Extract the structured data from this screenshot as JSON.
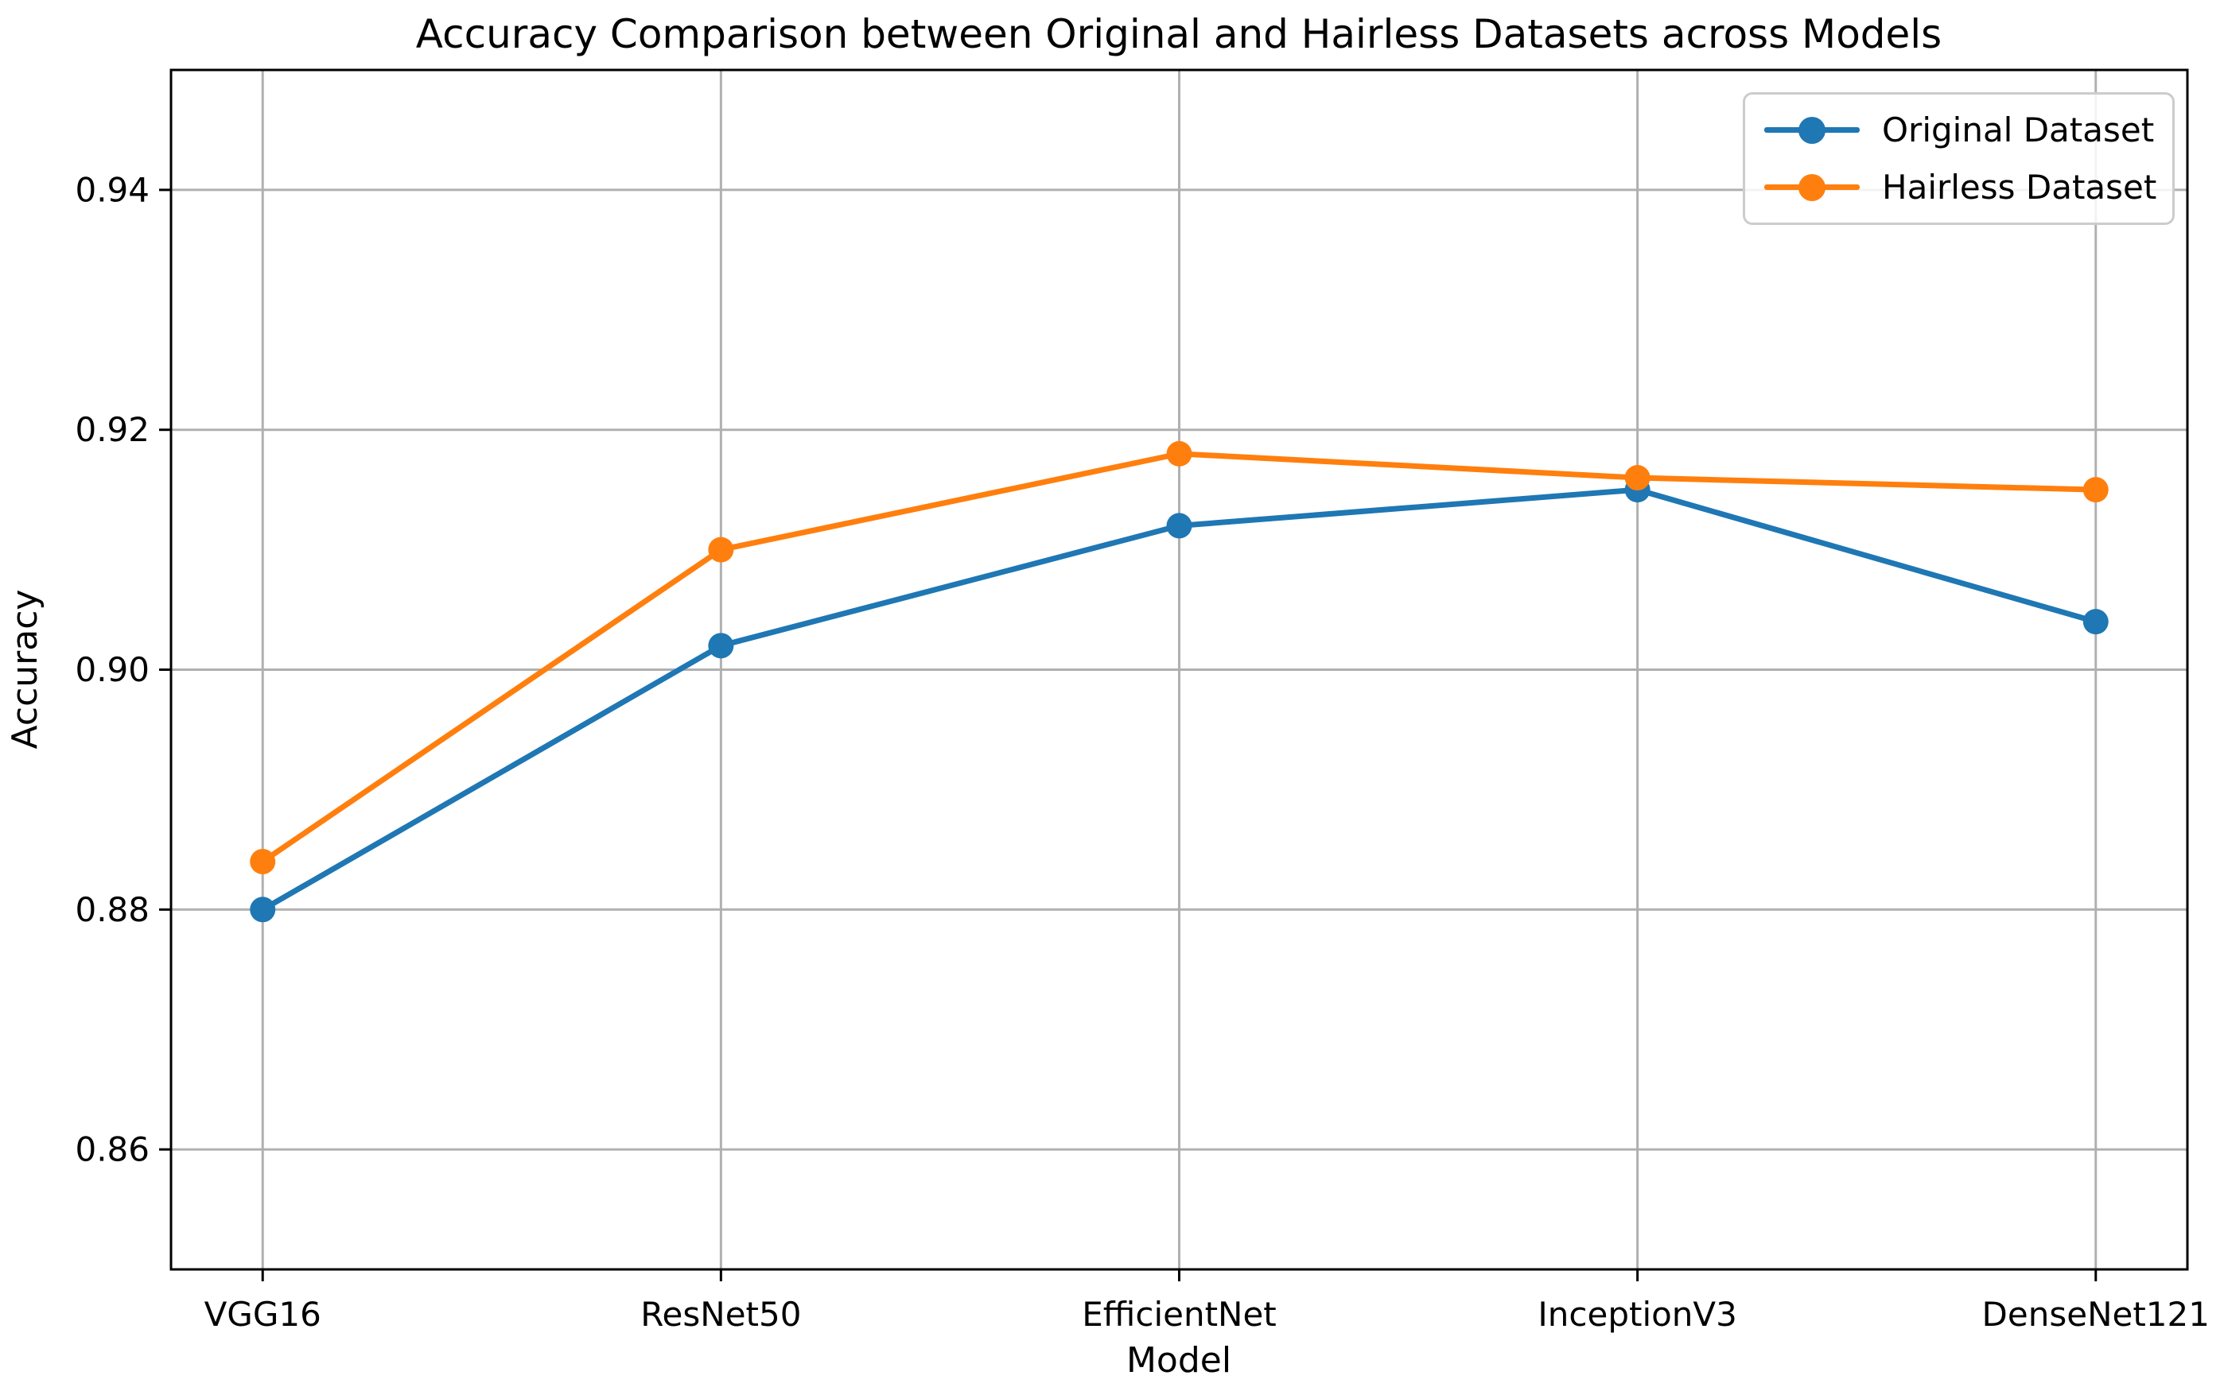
{
  "figure": {
    "background_color": "#ffffff",
    "text_color": "#000000"
  },
  "chart_data": {
    "type": "line",
    "title": "Accuracy Comparison between Original and Hairless Datasets across Models",
    "xlabel": "Model",
    "ylabel": "Accuracy",
    "categories": [
      "VGG16",
      "ResNet50",
      "EfficientNet",
      "InceptionV3",
      "DenseNet121"
    ],
    "series": [
      {
        "name": "Original Dataset",
        "color": "#1f77b4",
        "values": [
          0.88,
          0.902,
          0.912,
          0.915,
          0.904
        ]
      },
      {
        "name": "Hairless Dataset",
        "color": "#ff7f0e",
        "values": [
          0.884,
          0.91,
          0.918,
          0.916,
          0.915
        ]
      }
    ],
    "ylim": [
      0.85,
      0.95
    ],
    "yticks": [
      0.86,
      0.88,
      0.9,
      0.92,
      0.94
    ],
    "ytick_labels": [
      "0.86",
      "0.88",
      "0.90",
      "0.92",
      "0.94"
    ],
    "grid": true,
    "grid_color": "#b0b0b0",
    "spine_color": "#000000",
    "legend_position": "upper right",
    "legend_border_color": "#cccccc",
    "marker": "circle"
  }
}
